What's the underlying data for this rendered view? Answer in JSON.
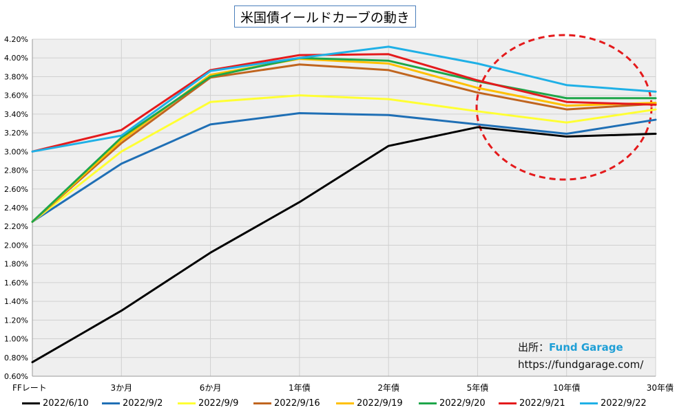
{
  "chart_data": {
    "type": "line",
    "title": "米国債イールドカーブの動き",
    "categories": [
      "FFレート",
      "3か月",
      "6か月",
      "1年債",
      "2年債",
      "5年債",
      "10年債",
      "30年債"
    ],
    "y_ticks": [
      "0.60%",
      "0.80%",
      "1.00%",
      "1.20%",
      "1.40%",
      "1.60%",
      "1.80%",
      "2.00%",
      "2.20%",
      "2.40%",
      "2.60%",
      "2.80%",
      "3.00%",
      "3.20%",
      "3.40%",
      "3.60%",
      "3.80%",
      "4.00%",
      "4.20%"
    ],
    "ylim": [
      0.6,
      4.2
    ],
    "y_unit": "%",
    "grid": true,
    "legend_position": "bottom",
    "series": [
      {
        "name": "2022/6/10",
        "color": "#000000",
        "values": [
          0.75,
          1.3,
          1.92,
          2.46,
          3.06,
          3.26,
          3.16,
          3.19
        ]
      },
      {
        "name": "2022/9/2",
        "color": "#1f6fb5",
        "values": [
          2.25,
          2.87,
          3.29,
          3.41,
          3.39,
          3.29,
          3.19,
          3.34
        ]
      },
      {
        "name": "2022/9/9",
        "color": "#ffff33",
        "values": [
          2.25,
          3.0,
          3.53,
          3.6,
          3.56,
          3.43,
          3.31,
          3.45
        ]
      },
      {
        "name": "2022/9/16",
        "color": "#c0651f",
        "values": [
          2.25,
          3.09,
          3.79,
          3.93,
          3.87,
          3.63,
          3.45,
          3.51
        ]
      },
      {
        "name": "2022/9/19",
        "color": "#ffc000",
        "values": [
          2.25,
          3.12,
          3.82,
          3.99,
          3.94,
          3.68,
          3.49,
          3.52
        ]
      },
      {
        "name": "2022/9/20",
        "color": "#1ea64a",
        "values": [
          2.25,
          3.15,
          3.8,
          4.0,
          3.97,
          3.75,
          3.57,
          3.57
        ]
      },
      {
        "name": "2022/9/21",
        "color": "#e41a1c",
        "values": [
          3.0,
          3.23,
          3.87,
          4.03,
          4.04,
          3.76,
          3.53,
          3.5
        ]
      },
      {
        "name": "2022/9/22",
        "color": "#1fb0e6",
        "values": [
          3.0,
          3.17,
          3.86,
          4.0,
          4.12,
          3.94,
          3.71,
          3.64
        ]
      }
    ]
  },
  "source": {
    "label": "出所：",
    "brand": "Fund Garage",
    "url": "https://fundgarage.com/"
  }
}
